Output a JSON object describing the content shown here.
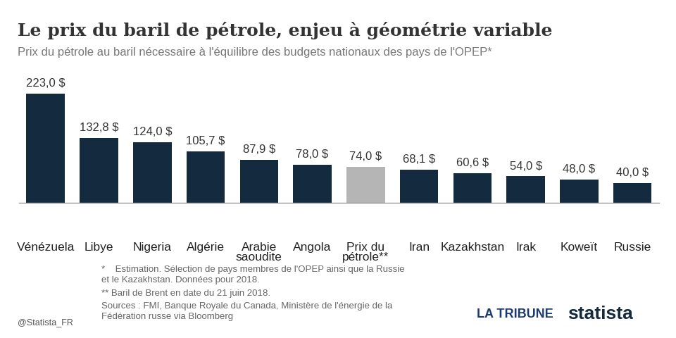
{
  "chart_data": {
    "type": "bar",
    "title": "Le prix du baril de pétrole, enjeu à géométrie variable",
    "subtitle": "Prix du pétrole au baril nécessaire à l'équilibre des budgets nationaux des pays de l'OPEP*",
    "categories": [
      "Vénézuela",
      "Libye",
      "Nigeria",
      "Algérie",
      "Arabie saoudite",
      "Angola",
      "Prix du pétrole**",
      "Iran",
      "Kazakhstan",
      "Irak",
      "Koweït",
      "Russie"
    ],
    "values": [
      223.0,
      132.8,
      124.0,
      105.7,
      87.9,
      78.0,
      74.0,
      68.1,
      60.6,
      54.0,
      48.0,
      40.0
    ],
    "value_labels": [
      "223,0 $",
      "132,8 $",
      "124,0 $",
      "105,7 $",
      "87,9 $",
      "78,0 $",
      "74,0 $",
      "68,1 $",
      "60,6 $",
      "54,0 $",
      "48,0 $",
      "40,0 $"
    ],
    "colors": [
      "#142a3e",
      "#142a3e",
      "#142a3e",
      "#142a3e",
      "#142a3e",
      "#142a3e",
      "#b5b5b5",
      "#142a3e",
      "#142a3e",
      "#142a3e",
      "#142a3e",
      "#142a3e"
    ],
    "ylim": [
      0,
      223
    ],
    "data_labels": true,
    "tick_labels": "x",
    "grid": false,
    "notes": [
      "*    Estimation. Sélection de pays membres de l'OPEP ainsi que la Russie et le Kazakhstan. Données pour 2018.",
      "** Baril de Brent en date du 21 juin 2018."
    ],
    "source": "Sources : FMI, Banque Royale du Canada, Ministère de l'énergie de la Fédération russe via Bloomberg",
    "credit": "@Statista_FR",
    "logos": [
      "LA TRIBUNE",
      "statista"
    ]
  }
}
